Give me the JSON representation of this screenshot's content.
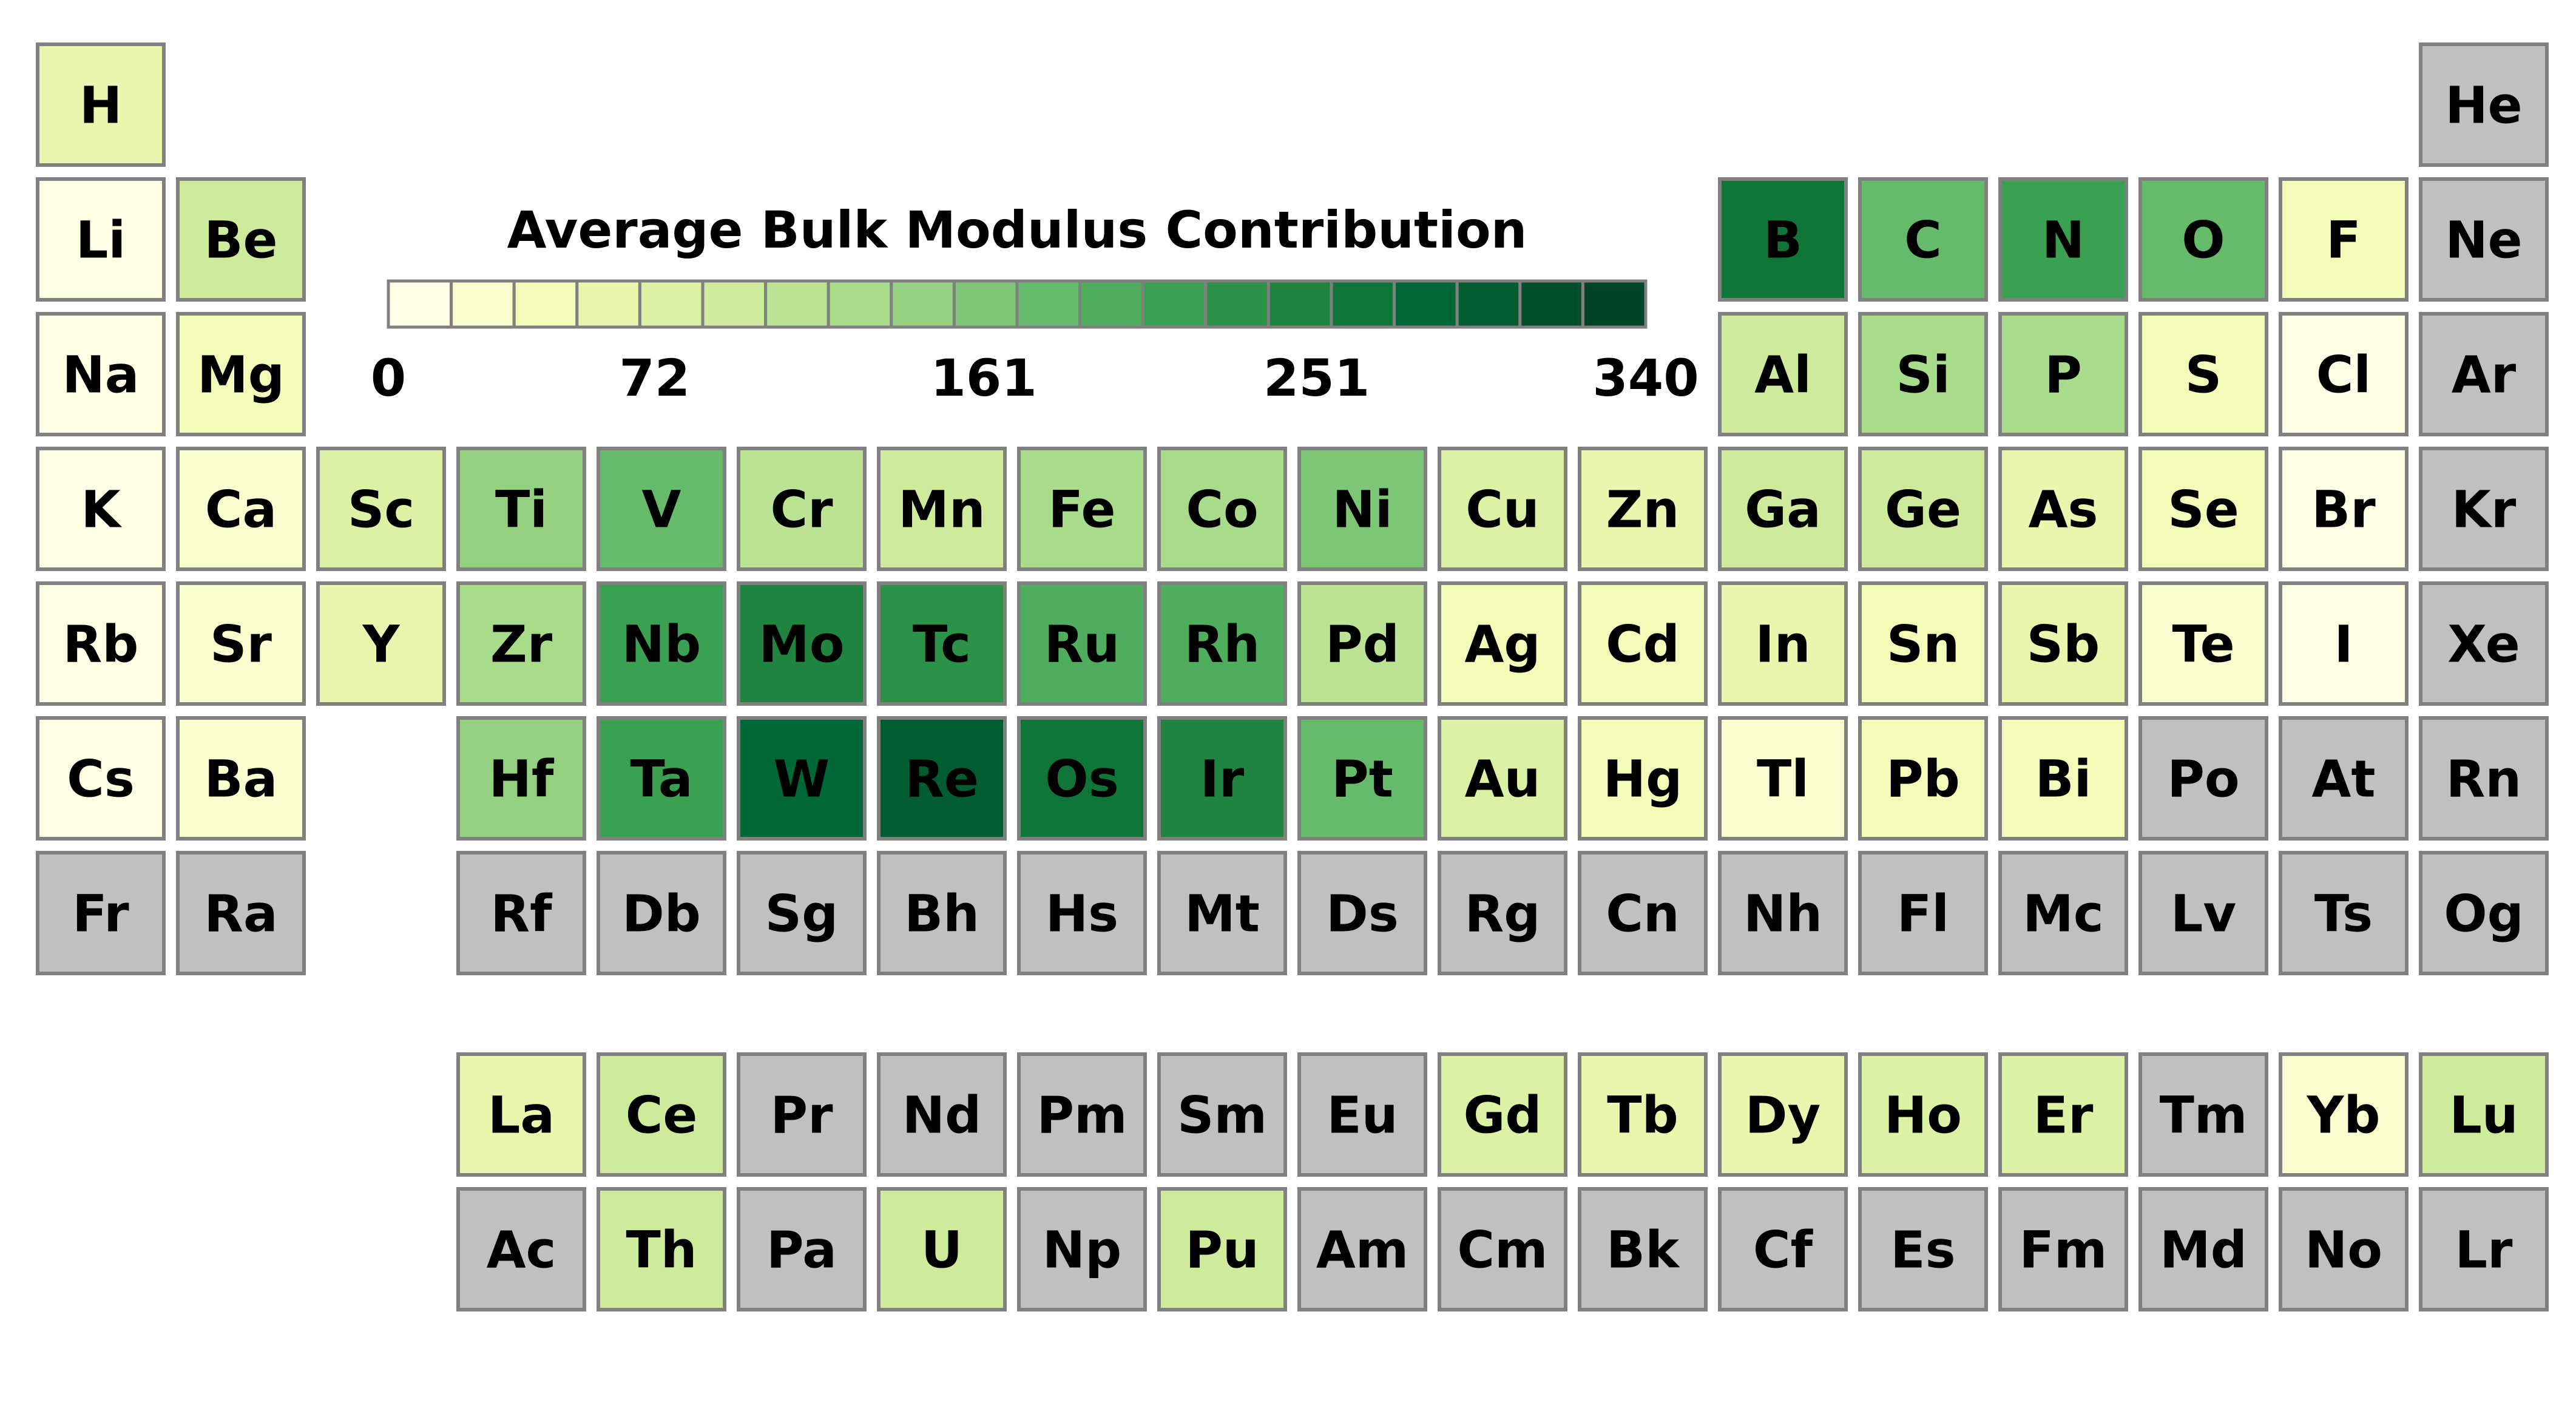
{
  "chart_data": {
    "type": "heatmap",
    "title": "Average Bulk Modulus Contribution",
    "colorbar": {
      "title": "Average Bulk Modulus Contribution",
      "range": [
        0,
        340
      ],
      "tick_labels": [
        "0",
        "72",
        "161",
        "251",
        "340"
      ],
      "tick_values": [
        0,
        72,
        161,
        251,
        340
      ],
      "bins": 20,
      "colors": [
        "#ffffe5",
        "#fafdce",
        "#f4fab8",
        "#e9f6ae",
        "#dbf1a4",
        "#cdeb9a",
        "#bbe393",
        "#a8db8a",
        "#93d180",
        "#7dc675",
        "#66bb6a",
        "#4fad5e",
        "#3ba152",
        "#2c9248",
        "#1f8440",
        "#107539",
        "#006837",
        "#005c31",
        "#004e2b",
        "#00452a"
      ]
    },
    "no_data_color": "#c0c0c0",
    "elements": [
      {
        "symbol": "H",
        "row": 1,
        "col": 1,
        "value": 60
      },
      {
        "symbol": "He",
        "row": 1,
        "col": 18,
        "value": null
      },
      {
        "symbol": "Li",
        "row": 2,
        "col": 1,
        "value": 15
      },
      {
        "symbol": "Be",
        "row": 2,
        "col": 2,
        "value": 100
      },
      {
        "symbol": "B",
        "row": 2,
        "col": 13,
        "value": 265
      },
      {
        "symbol": "C",
        "row": 2,
        "col": 14,
        "value": 185
      },
      {
        "symbol": "N",
        "row": 2,
        "col": 15,
        "value": 210
      },
      {
        "symbol": "O",
        "row": 2,
        "col": 16,
        "value": 175
      },
      {
        "symbol": "F",
        "row": 2,
        "col": 17,
        "value": 45
      },
      {
        "symbol": "Ne",
        "row": 2,
        "col": 18,
        "value": null
      },
      {
        "symbol": "Na",
        "row": 3,
        "col": 1,
        "value": 10
      },
      {
        "symbol": "Mg",
        "row": 3,
        "col": 2,
        "value": 50
      },
      {
        "symbol": "Al",
        "row": 3,
        "col": 13,
        "value": 85
      },
      {
        "symbol": "Si",
        "row": 3,
        "col": 14,
        "value": 125
      },
      {
        "symbol": "P",
        "row": 3,
        "col": 15,
        "value": 130
      },
      {
        "symbol": "S",
        "row": 3,
        "col": 16,
        "value": 50
      },
      {
        "symbol": "Cl",
        "row": 3,
        "col": 17,
        "value": 15
      },
      {
        "symbol": "Ar",
        "row": 3,
        "col": 18,
        "value": null
      },
      {
        "symbol": "K",
        "row": 4,
        "col": 1,
        "value": 5
      },
      {
        "symbol": "Ca",
        "row": 4,
        "col": 2,
        "value": 30
      },
      {
        "symbol": "Sc",
        "row": 4,
        "col": 3,
        "value": 80
      },
      {
        "symbol": "Ti",
        "row": 4,
        "col": 4,
        "value": 140
      },
      {
        "symbol": "V",
        "row": 4,
        "col": 5,
        "value": 175
      },
      {
        "symbol": "Cr",
        "row": 4,
        "col": 6,
        "value": 105
      },
      {
        "symbol": "Mn",
        "row": 4,
        "col": 7,
        "value": 90
      },
      {
        "symbol": "Fe",
        "row": 4,
        "col": 8,
        "value": 130
      },
      {
        "symbol": "Co",
        "row": 4,
        "col": 9,
        "value": 125
      },
      {
        "symbol": "Ni",
        "row": 4,
        "col": 10,
        "value": 160
      },
      {
        "symbol": "Cu",
        "row": 4,
        "col": 11,
        "value": 80
      },
      {
        "symbol": "Zn",
        "row": 4,
        "col": 12,
        "value": 55
      },
      {
        "symbol": "Ga",
        "row": 4,
        "col": 13,
        "value": 85
      },
      {
        "symbol": "Ge",
        "row": 4,
        "col": 14,
        "value": 90
      },
      {
        "symbol": "As",
        "row": 4,
        "col": 15,
        "value": 55
      },
      {
        "symbol": "Se",
        "row": 4,
        "col": 16,
        "value": 35
      },
      {
        "symbol": "Br",
        "row": 4,
        "col": 17,
        "value": 15
      },
      {
        "symbol": "Kr",
        "row": 4,
        "col": 18,
        "value": null
      },
      {
        "symbol": "Rb",
        "row": 5,
        "col": 1,
        "value": 5
      },
      {
        "symbol": "Sr",
        "row": 5,
        "col": 2,
        "value": 25
      },
      {
        "symbol": "Y",
        "row": 5,
        "col": 3,
        "value": 65
      },
      {
        "symbol": "Zr",
        "row": 5,
        "col": 4,
        "value": 125
      },
      {
        "symbol": "Nb",
        "row": 5,
        "col": 5,
        "value": 205
      },
      {
        "symbol": "Mo",
        "row": 5,
        "col": 6,
        "value": 245
      },
      {
        "symbol": "Tc",
        "row": 5,
        "col": 7,
        "value": 235
      },
      {
        "symbol": "Ru",
        "row": 5,
        "col": 8,
        "value": 195
      },
      {
        "symbol": "Rh",
        "row": 5,
        "col": 9,
        "value": 190
      },
      {
        "symbol": "Pd",
        "row": 5,
        "col": 10,
        "value": 115
      },
      {
        "symbol": "Ag",
        "row": 5,
        "col": 11,
        "value": 40
      },
      {
        "symbol": "Cd",
        "row": 5,
        "col": 12,
        "value": 45
      },
      {
        "symbol": "In",
        "row": 5,
        "col": 13,
        "value": 55
      },
      {
        "symbol": "Sn",
        "row": 5,
        "col": 14,
        "value": 40
      },
      {
        "symbol": "Sb",
        "row": 5,
        "col": 15,
        "value": 65
      },
      {
        "symbol": "Te",
        "row": 5,
        "col": 16,
        "value": 30
      },
      {
        "symbol": "I",
        "row": 5,
        "col": 17,
        "value": 10
      },
      {
        "symbol": "Xe",
        "row": 5,
        "col": 18,
        "value": null
      },
      {
        "symbol": "Cs",
        "row": 6,
        "col": 1,
        "value": 5
      },
      {
        "symbol": "Ba",
        "row": 6,
        "col": 2,
        "value": 25
      },
      {
        "symbol": "Hf",
        "row": 6,
        "col": 4,
        "value": 145
      },
      {
        "symbol": "Ta",
        "row": 6,
        "col": 5,
        "value": 215
      },
      {
        "symbol": "W",
        "row": 6,
        "col": 6,
        "value": 275
      },
      {
        "symbol": "Re",
        "row": 6,
        "col": 7,
        "value": 305
      },
      {
        "symbol": "Os",
        "row": 6,
        "col": 8,
        "value": 265
      },
      {
        "symbol": "Ir",
        "row": 6,
        "col": 9,
        "value": 245
      },
      {
        "symbol": "Pt",
        "row": 6,
        "col": 10,
        "value": 180
      },
      {
        "symbol": "Au",
        "row": 6,
        "col": 11,
        "value": 70
      },
      {
        "symbol": "Hg",
        "row": 6,
        "col": 12,
        "value": 45
      },
      {
        "symbol": "Tl",
        "row": 6,
        "col": 13,
        "value": 25
      },
      {
        "symbol": "Pb",
        "row": 6,
        "col": 14,
        "value": 35
      },
      {
        "symbol": "Bi",
        "row": 6,
        "col": 15,
        "value": 50
      },
      {
        "symbol": "Po",
        "row": 6,
        "col": 16,
        "value": null
      },
      {
        "symbol": "At",
        "row": 6,
        "col": 17,
        "value": null
      },
      {
        "symbol": "Rn",
        "row": 6,
        "col": 18,
        "value": null
      },
      {
        "symbol": "Fr",
        "row": 7,
        "col": 1,
        "value": null
      },
      {
        "symbol": "Ra",
        "row": 7,
        "col": 2,
        "value": null
      },
      {
        "symbol": "Rf",
        "row": 7,
        "col": 4,
        "value": null
      },
      {
        "symbol": "Db",
        "row": 7,
        "col": 5,
        "value": null
      },
      {
        "symbol": "Sg",
        "row": 7,
        "col": 6,
        "value": null
      },
      {
        "symbol": "Bh",
        "row": 7,
        "col": 7,
        "value": null
      },
      {
        "symbol": "Hs",
        "row": 7,
        "col": 8,
        "value": null
      },
      {
        "symbol": "Mt",
        "row": 7,
        "col": 9,
        "value": null
      },
      {
        "symbol": "Ds",
        "row": 7,
        "col": 10,
        "value": null
      },
      {
        "symbol": "Rg",
        "row": 7,
        "col": 11,
        "value": null
      },
      {
        "symbol": "Cn",
        "row": 7,
        "col": 12,
        "value": null
      },
      {
        "symbol": "Nh",
        "row": 7,
        "col": 13,
        "value": null
      },
      {
        "symbol": "Fl",
        "row": 7,
        "col": 14,
        "value": null
      },
      {
        "symbol": "Mc",
        "row": 7,
        "col": 15,
        "value": null
      },
      {
        "symbol": "Lv",
        "row": 7,
        "col": 16,
        "value": null
      },
      {
        "symbol": "Ts",
        "row": 7,
        "col": 17,
        "value": null
      },
      {
        "symbol": "Og",
        "row": 7,
        "col": 18,
        "value": null
      },
      {
        "symbol": "La",
        "row": 9,
        "col": 4,
        "value": 55
      },
      {
        "symbol": "Ce",
        "row": 9,
        "col": 5,
        "value": 85
      },
      {
        "symbol": "Pr",
        "row": 9,
        "col": 6,
        "value": null
      },
      {
        "symbol": "Nd",
        "row": 9,
        "col": 7,
        "value": null
      },
      {
        "symbol": "Pm",
        "row": 9,
        "col": 8,
        "value": null
      },
      {
        "symbol": "Sm",
        "row": 9,
        "col": 9,
        "value": null
      },
      {
        "symbol": "Eu",
        "row": 9,
        "col": 10,
        "value": null
      },
      {
        "symbol": "Gd",
        "row": 9,
        "col": 11,
        "value": 70
      },
      {
        "symbol": "Tb",
        "row": 9,
        "col": 12,
        "value": 65
      },
      {
        "symbol": "Dy",
        "row": 9,
        "col": 13,
        "value": 65
      },
      {
        "symbol": "Ho",
        "row": 9,
        "col": 14,
        "value": 70
      },
      {
        "symbol": "Er",
        "row": 9,
        "col": 15,
        "value": 75
      },
      {
        "symbol": "Tm",
        "row": 9,
        "col": 16,
        "value": null
      },
      {
        "symbol": "Yb",
        "row": 9,
        "col": 17,
        "value": 25
      },
      {
        "symbol": "Lu",
        "row": 9,
        "col": 18,
        "value": 85
      },
      {
        "symbol": "Ac",
        "row": 10,
        "col": 4,
        "value": null
      },
      {
        "symbol": "Th",
        "row": 10,
        "col": 5,
        "value": 90
      },
      {
        "symbol": "Pa",
        "row": 10,
        "col": 6,
        "value": null
      },
      {
        "symbol": "U",
        "row": 10,
        "col": 7,
        "value": 100
      },
      {
        "symbol": "Np",
        "row": 10,
        "col": 8,
        "value": null
      },
      {
        "symbol": "Pu",
        "row": 10,
        "col": 9,
        "value": 90
      },
      {
        "symbol": "Am",
        "row": 10,
        "col": 10,
        "value": null
      },
      {
        "symbol": "Cm",
        "row": 10,
        "col": 11,
        "value": null
      },
      {
        "symbol": "Bk",
        "row": 10,
        "col": 12,
        "value": null
      },
      {
        "symbol": "Cf",
        "row": 10,
        "col": 13,
        "value": null
      },
      {
        "symbol": "Es",
        "row": 10,
        "col": 14,
        "value": null
      },
      {
        "symbol": "Fm",
        "row": 10,
        "col": 15,
        "value": null
      },
      {
        "symbol": "Md",
        "row": 10,
        "col": 16,
        "value": null
      },
      {
        "symbol": "No",
        "row": 10,
        "col": 17,
        "value": null
      },
      {
        "symbol": "Lr",
        "row": 10,
        "col": 18,
        "value": null
      }
    ]
  }
}
